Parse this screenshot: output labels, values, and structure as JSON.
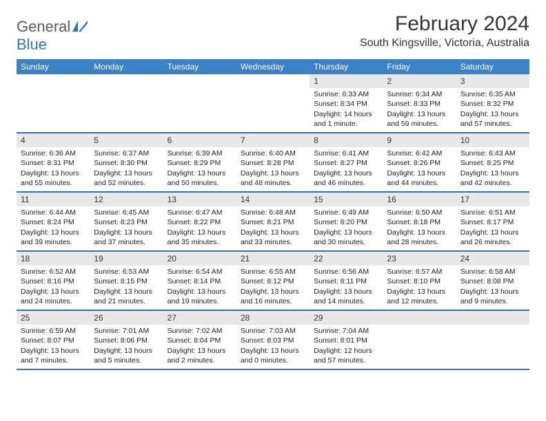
{
  "logo": {
    "text1": "General",
    "text2": "Blue"
  },
  "title": "February 2024",
  "location": "South Kingsville, Victoria, Australia",
  "colors": {
    "header_bg": "#3b82c4",
    "header_text": "#ffffff",
    "daynum_bg": "#e8e8e8",
    "row_border": "#3b6fa0",
    "logo_gray": "#5a5a5a",
    "logo_blue": "#2d77b8"
  },
  "day_names": [
    "Sunday",
    "Monday",
    "Tuesday",
    "Wednesday",
    "Thursday",
    "Friday",
    "Saturday"
  ],
  "weeks": [
    [
      {
        "n": "",
        "sr": "",
        "ss": "",
        "dl": ""
      },
      {
        "n": "",
        "sr": "",
        "ss": "",
        "dl": ""
      },
      {
        "n": "",
        "sr": "",
        "ss": "",
        "dl": ""
      },
      {
        "n": "",
        "sr": "",
        "ss": "",
        "dl": ""
      },
      {
        "n": "1",
        "sr": "Sunrise: 6:33 AM",
        "ss": "Sunset: 8:34 PM",
        "dl": "Daylight: 14 hours and 1 minute."
      },
      {
        "n": "2",
        "sr": "Sunrise: 6:34 AM",
        "ss": "Sunset: 8:33 PM",
        "dl": "Daylight: 13 hours and 59 minutes."
      },
      {
        "n": "3",
        "sr": "Sunrise: 6:35 AM",
        "ss": "Sunset: 8:32 PM",
        "dl": "Daylight: 13 hours and 57 minutes."
      }
    ],
    [
      {
        "n": "4",
        "sr": "Sunrise: 6:36 AM",
        "ss": "Sunset: 8:31 PM",
        "dl": "Daylight: 13 hours and 55 minutes."
      },
      {
        "n": "5",
        "sr": "Sunrise: 6:37 AM",
        "ss": "Sunset: 8:30 PM",
        "dl": "Daylight: 13 hours and 52 minutes."
      },
      {
        "n": "6",
        "sr": "Sunrise: 6:39 AM",
        "ss": "Sunset: 8:29 PM",
        "dl": "Daylight: 13 hours and 50 minutes."
      },
      {
        "n": "7",
        "sr": "Sunrise: 6:40 AM",
        "ss": "Sunset: 8:28 PM",
        "dl": "Daylight: 13 hours and 48 minutes."
      },
      {
        "n": "8",
        "sr": "Sunrise: 6:41 AM",
        "ss": "Sunset: 8:27 PM",
        "dl": "Daylight: 13 hours and 46 minutes."
      },
      {
        "n": "9",
        "sr": "Sunrise: 6:42 AM",
        "ss": "Sunset: 8:26 PM",
        "dl": "Daylight: 13 hours and 44 minutes."
      },
      {
        "n": "10",
        "sr": "Sunrise: 6:43 AM",
        "ss": "Sunset: 8:25 PM",
        "dl": "Daylight: 13 hours and 42 minutes."
      }
    ],
    [
      {
        "n": "11",
        "sr": "Sunrise: 6:44 AM",
        "ss": "Sunset: 8:24 PM",
        "dl": "Daylight: 13 hours and 39 minutes."
      },
      {
        "n": "12",
        "sr": "Sunrise: 6:45 AM",
        "ss": "Sunset: 8:23 PM",
        "dl": "Daylight: 13 hours and 37 minutes."
      },
      {
        "n": "13",
        "sr": "Sunrise: 6:47 AM",
        "ss": "Sunset: 8:22 PM",
        "dl": "Daylight: 13 hours and 35 minutes."
      },
      {
        "n": "14",
        "sr": "Sunrise: 6:48 AM",
        "ss": "Sunset: 8:21 PM",
        "dl": "Daylight: 13 hours and 33 minutes."
      },
      {
        "n": "15",
        "sr": "Sunrise: 6:49 AM",
        "ss": "Sunset: 8:20 PM",
        "dl": "Daylight: 13 hours and 30 minutes."
      },
      {
        "n": "16",
        "sr": "Sunrise: 6:50 AM",
        "ss": "Sunset: 8:18 PM",
        "dl": "Daylight: 13 hours and 28 minutes."
      },
      {
        "n": "17",
        "sr": "Sunrise: 6:51 AM",
        "ss": "Sunset: 8:17 PM",
        "dl": "Daylight: 13 hours and 26 minutes."
      }
    ],
    [
      {
        "n": "18",
        "sr": "Sunrise: 6:52 AM",
        "ss": "Sunset: 8:16 PM",
        "dl": "Daylight: 13 hours and 24 minutes."
      },
      {
        "n": "19",
        "sr": "Sunrise: 6:53 AM",
        "ss": "Sunset: 8:15 PM",
        "dl": "Daylight: 13 hours and 21 minutes."
      },
      {
        "n": "20",
        "sr": "Sunrise: 6:54 AM",
        "ss": "Sunset: 8:14 PM",
        "dl": "Daylight: 13 hours and 19 minutes."
      },
      {
        "n": "21",
        "sr": "Sunrise: 6:55 AM",
        "ss": "Sunset: 8:12 PM",
        "dl": "Daylight: 13 hours and 16 minutes."
      },
      {
        "n": "22",
        "sr": "Sunrise: 6:56 AM",
        "ss": "Sunset: 8:11 PM",
        "dl": "Daylight: 13 hours and 14 minutes."
      },
      {
        "n": "23",
        "sr": "Sunrise: 6:57 AM",
        "ss": "Sunset: 8:10 PM",
        "dl": "Daylight: 13 hours and 12 minutes."
      },
      {
        "n": "24",
        "sr": "Sunrise: 6:58 AM",
        "ss": "Sunset: 8:08 PM",
        "dl": "Daylight: 13 hours and 9 minutes."
      }
    ],
    [
      {
        "n": "25",
        "sr": "Sunrise: 6:59 AM",
        "ss": "Sunset: 8:07 PM",
        "dl": "Daylight: 13 hours and 7 minutes."
      },
      {
        "n": "26",
        "sr": "Sunrise: 7:01 AM",
        "ss": "Sunset: 8:06 PM",
        "dl": "Daylight: 13 hours and 5 minutes."
      },
      {
        "n": "27",
        "sr": "Sunrise: 7:02 AM",
        "ss": "Sunset: 8:04 PM",
        "dl": "Daylight: 13 hours and 2 minutes."
      },
      {
        "n": "28",
        "sr": "Sunrise: 7:03 AM",
        "ss": "Sunset: 8:03 PM",
        "dl": "Daylight: 13 hours and 0 minutes."
      },
      {
        "n": "29",
        "sr": "Sunrise: 7:04 AM",
        "ss": "Sunset: 8:01 PM",
        "dl": "Daylight: 12 hours and 57 minutes."
      },
      {
        "n": "",
        "sr": "",
        "ss": "",
        "dl": ""
      },
      {
        "n": "",
        "sr": "",
        "ss": "",
        "dl": ""
      }
    ]
  ]
}
